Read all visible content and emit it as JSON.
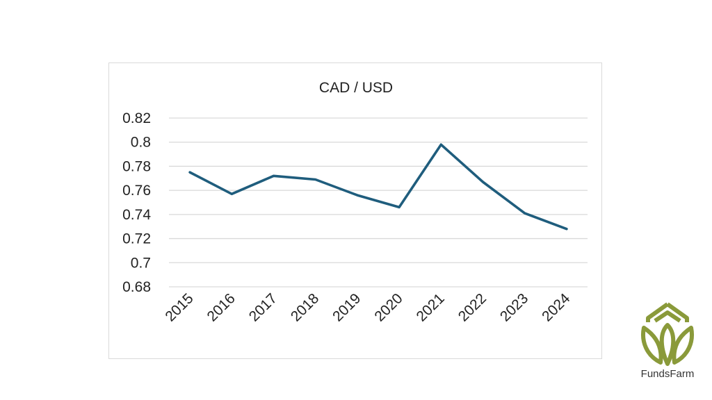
{
  "chart_data": {
    "type": "line",
    "title": "CAD / USD",
    "xlabel": "",
    "ylabel": "",
    "x": [
      "2015",
      "2016",
      "2017",
      "2018",
      "2019",
      "2020",
      "2021",
      "2022",
      "2023",
      "2024"
    ],
    "series": [
      {
        "values": [
          0.775,
          0.757,
          0.772,
          0.769,
          0.756,
          0.746,
          0.798,
          0.767,
          0.741,
          0.728
        ]
      }
    ],
    "ylim": [
      0.68,
      0.82
    ],
    "yticks": [
      "0.68",
      "0.7",
      "0.72",
      "0.74",
      "0.76",
      "0.78",
      "0.8",
      "0.82"
    ],
    "grid": true,
    "legend": "none",
    "colors": {
      "series": "#1f5d7d",
      "grid": "#d9d9d9",
      "text": "#222222"
    }
  },
  "brand": {
    "name": "FundsFarm",
    "color": "#8a9a3a"
  }
}
